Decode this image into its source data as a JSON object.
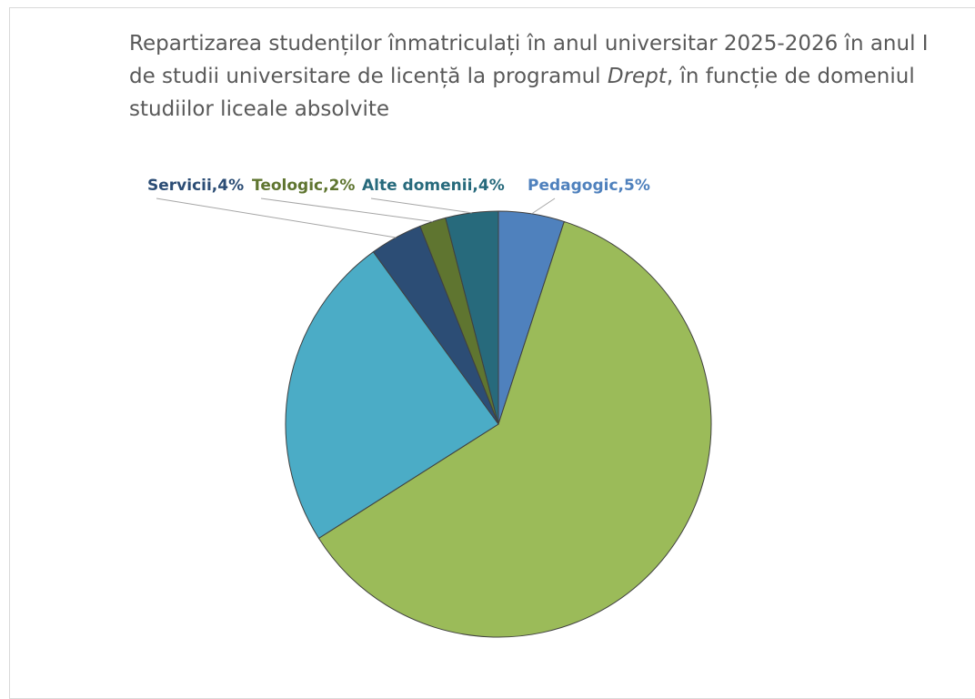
{
  "chart_data": {
    "type": "pie",
    "title_parts": [
      "Repartizarea studenților înmatriculați în anul universitar 2025-2026 în anul I de studii universitare de licență la programul ",
      "Drept",
      ", în funcție de domeniul studiilor liceale absolvite"
    ],
    "values": [
      5,
      61,
      24,
      4,
      2,
      4
    ],
    "value_labels": [
      "Pedagogic,5%",
      null,
      null,
      "Servicii,4%",
      "Teologic,2%",
      "Alte domenii,4%"
    ],
    "colors": [
      "#4f81bd",
      "#9bbb59",
      "#4bacc6",
      "#2c4d75",
      "#5f7530",
      "#276a7c"
    ]
  }
}
